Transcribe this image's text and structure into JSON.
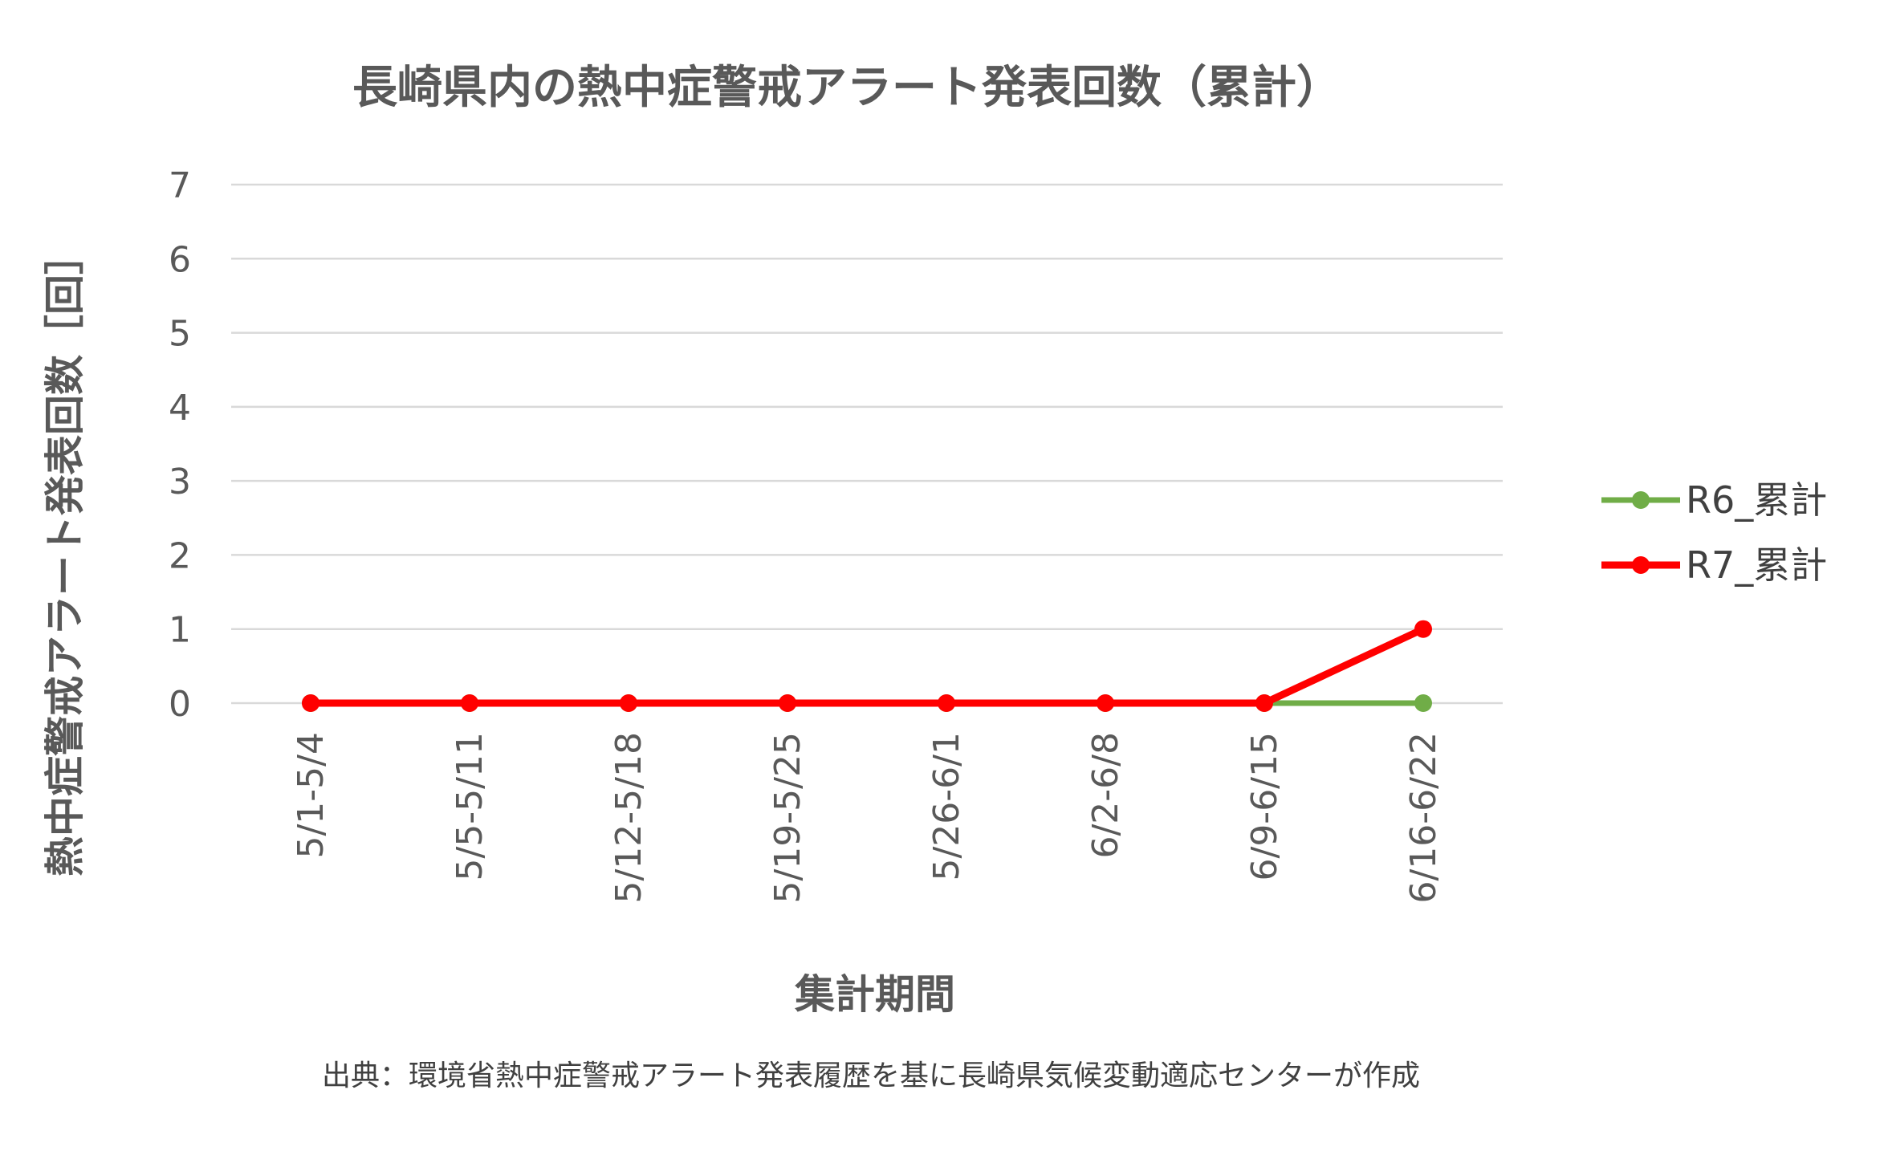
{
  "chart_data": {
    "type": "line",
    "title": "長崎県内の熱中症警戒アラート発表回数（累計）",
    "xlabel": "集計期間",
    "ylabel": "熱中症警戒アラート発表回数［回］",
    "categories": [
      "5/1-5/4",
      "5/5-5/11",
      "5/12-5/18",
      "5/19-5/25",
      "5/26-6/1",
      "6/2-6/8",
      "6/9-6/15",
      "6/16-6/22"
    ],
    "y_ticks": [
      "0",
      "1",
      "2",
      "3",
      "4",
      "5",
      "6",
      "7"
    ],
    "ylim": [
      0,
      7
    ],
    "grid": true,
    "legend_position": "right",
    "series": [
      {
        "name": "R6_累計",
        "color": "#70ad47",
        "values": [
          0,
          0,
          0,
          0,
          0,
          0,
          0,
          0
        ]
      },
      {
        "name": "R7_累計",
        "color": "#ff0000",
        "values": [
          0,
          0,
          0,
          0,
          0,
          0,
          0,
          1
        ]
      }
    ]
  },
  "source_note": "出典：環境省熱中症警戒アラート発表履歴を基に長崎県気候変動適応センターが作成"
}
